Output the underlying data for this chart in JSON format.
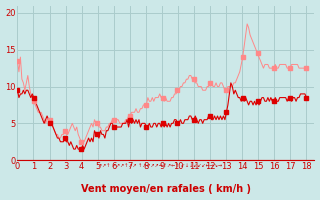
{
  "xlabel": "Vent moyen/en rafales ( km/h )",
  "bg_color": "#cce8e8",
  "grid_color": "#aacccc",
  "line_rafales_color": "#ff8888",
  "line_moyen_color": "#dd0000",
  "marker_rafales_color": "#ff8888",
  "marker_moyen_color": "#dd0000",
  "xlim": [
    0,
    18.5
  ],
  "ylim": [
    0,
    21
  ],
  "yticks": [
    0,
    5,
    10,
    15,
    20
  ],
  "xticks": [
    0,
    1,
    2,
    3,
    4,
    5,
    6,
    7,
    8,
    9,
    10,
    11,
    12,
    13,
    14,
    15,
    16,
    17,
    18
  ],
  "tick_color": "#cc0000",
  "xlabel_color": "#cc0000",
  "xlabel_fontsize": 7,
  "tick_fontsize": 6,
  "rafales": [
    13.5,
    12.0,
    14.0,
    11.0,
    10.5,
    9.5,
    10.5,
    11.5,
    10.0,
    9.0,
    8.5,
    8.0,
    7.5,
    7.0,
    6.5,
    6.5,
    6.5,
    6.0,
    5.5,
    5.0,
    5.5,
    5.5,
    5.5,
    5.0,
    4.5,
    4.0,
    3.5,
    3.5,
    3.0,
    3.0,
    3.5,
    3.5,
    4.0,
    3.5,
    3.5,
    4.0,
    4.5,
    5.0,
    4.5,
    4.0,
    4.5,
    3.5,
    3.0,
    2.5,
    2.5,
    2.5,
    3.0,
    3.5,
    4.0,
    4.5,
    5.0,
    4.5,
    5.5,
    5.0,
    5.0,
    4.5,
    4.5,
    4.0,
    4.0,
    4.0,
    4.5,
    4.5,
    5.0,
    5.0,
    5.5,
    5.5,
    5.5,
    5.5,
    5.5,
    5.0,
    5.0,
    5.0,
    5.0,
    5.5,
    5.5,
    6.0,
    6.0,
    6.5,
    6.5,
    6.5,
    7.0,
    6.5,
    6.5,
    7.0,
    7.0,
    7.5,
    7.5,
    7.5,
    8.5,
    8.0,
    8.0,
    8.5,
    8.0,
    8.5,
    8.5,
    8.5,
    9.0,
    8.5,
    8.5,
    8.0,
    8.5,
    8.0,
    8.0,
    8.0,
    8.5,
    8.5,
    9.0,
    9.0,
    9.5,
    9.5,
    10.0,
    10.0,
    10.5,
    10.5,
    11.0,
    11.0,
    11.5,
    11.5,
    11.0,
    11.0,
    10.5,
    10.5,
    10.0,
    10.0,
    10.0,
    9.5,
    9.5,
    9.5,
    10.0,
    10.0,
    10.5,
    10.5,
    10.0,
    10.0,
    10.5,
    10.0,
    10.0,
    10.5,
    10.5,
    10.0,
    9.5,
    9.5,
    10.0,
    10.0,
    10.0,
    10.0,
    10.5,
    10.5,
    11.0,
    11.5,
    12.0,
    13.0,
    14.0,
    15.5,
    17.0,
    18.5,
    18.0,
    17.0,
    16.5,
    16.0,
    15.5,
    15.0,
    14.5,
    14.0,
    13.5,
    13.0,
    12.5,
    13.0,
    13.0,
    13.0,
    12.5,
    12.5,
    12.5,
    12.5,
    13.0,
    12.5,
    12.5,
    13.0,
    13.0,
    13.0,
    13.0,
    13.0,
    12.5,
    12.5,
    12.5,
    13.0,
    13.0,
    13.0,
    13.0,
    13.0,
    12.5,
    12.5,
    12.5,
    12.5,
    12.5,
    12.5
  ],
  "moyen": [
    9.5,
    8.5,
    9.0,
    9.0,
    9.5,
    9.0,
    9.5,
    9.5,
    9.0,
    8.5,
    9.0,
    8.5,
    8.0,
    7.5,
    7.0,
    6.5,
    6.0,
    5.5,
    5.0,
    5.5,
    6.0,
    5.5,
    5.0,
    5.0,
    4.5,
    4.0,
    3.5,
    3.0,
    3.0,
    2.5,
    2.5,
    2.5,
    3.0,
    2.5,
    2.5,
    2.0,
    2.5,
    2.0,
    1.5,
    1.5,
    2.0,
    1.5,
    1.5,
    1.5,
    2.0,
    1.5,
    2.0,
    2.5,
    3.0,
    2.5,
    3.0,
    2.5,
    4.0,
    3.5,
    3.5,
    3.0,
    4.0,
    3.5,
    3.5,
    3.0,
    4.0,
    4.0,
    4.5,
    5.0,
    5.0,
    4.5,
    4.5,
    4.5,
    4.5,
    4.5,
    4.5,
    5.0,
    5.0,
    5.0,
    5.5,
    4.5,
    5.5,
    5.0,
    5.5,
    5.0,
    5.5,
    5.0,
    5.5,
    4.5,
    5.0,
    5.0,
    5.0,
    4.5,
    4.5,
    5.0,
    4.5,
    4.5,
    5.0,
    5.0,
    4.5,
    5.0,
    5.0,
    4.5,
    5.0,
    4.5,
    5.0,
    4.5,
    5.0,
    4.5,
    5.0,
    5.0,
    5.5,
    5.5,
    5.0,
    5.0,
    5.5,
    5.0,
    5.0,
    5.5,
    5.5,
    5.5,
    6.0,
    6.0,
    5.5,
    5.5,
    6.0,
    5.5,
    5.0,
    5.5,
    5.5,
    5.0,
    5.5,
    5.5,
    5.5,
    6.0,
    6.0,
    5.5,
    5.5,
    6.0,
    5.5,
    6.0,
    5.5,
    6.0,
    5.5,
    6.0,
    5.5,
    6.5,
    7.5,
    9.0,
    10.5,
    10.0,
    9.0,
    9.5,
    9.0,
    8.5,
    8.5,
    8.0,
    8.5,
    8.0,
    8.5,
    8.0,
    7.5,
    8.0,
    8.0,
    7.5,
    8.0,
    7.5,
    8.0,
    7.5,
    8.0,
    8.5,
    8.5,
    8.0,
    8.0,
    8.5,
    8.0,
    8.5,
    8.0,
    8.0,
    8.5,
    8.0,
    8.0,
    8.5,
    8.5,
    8.5,
    8.5,
    8.5,
    8.0,
    8.5,
    8.5,
    8.0,
    8.5,
    8.5,
    8.0,
    8.5,
    8.5,
    9.0,
    9.0,
    9.0,
    9.0,
    8.5
  ]
}
